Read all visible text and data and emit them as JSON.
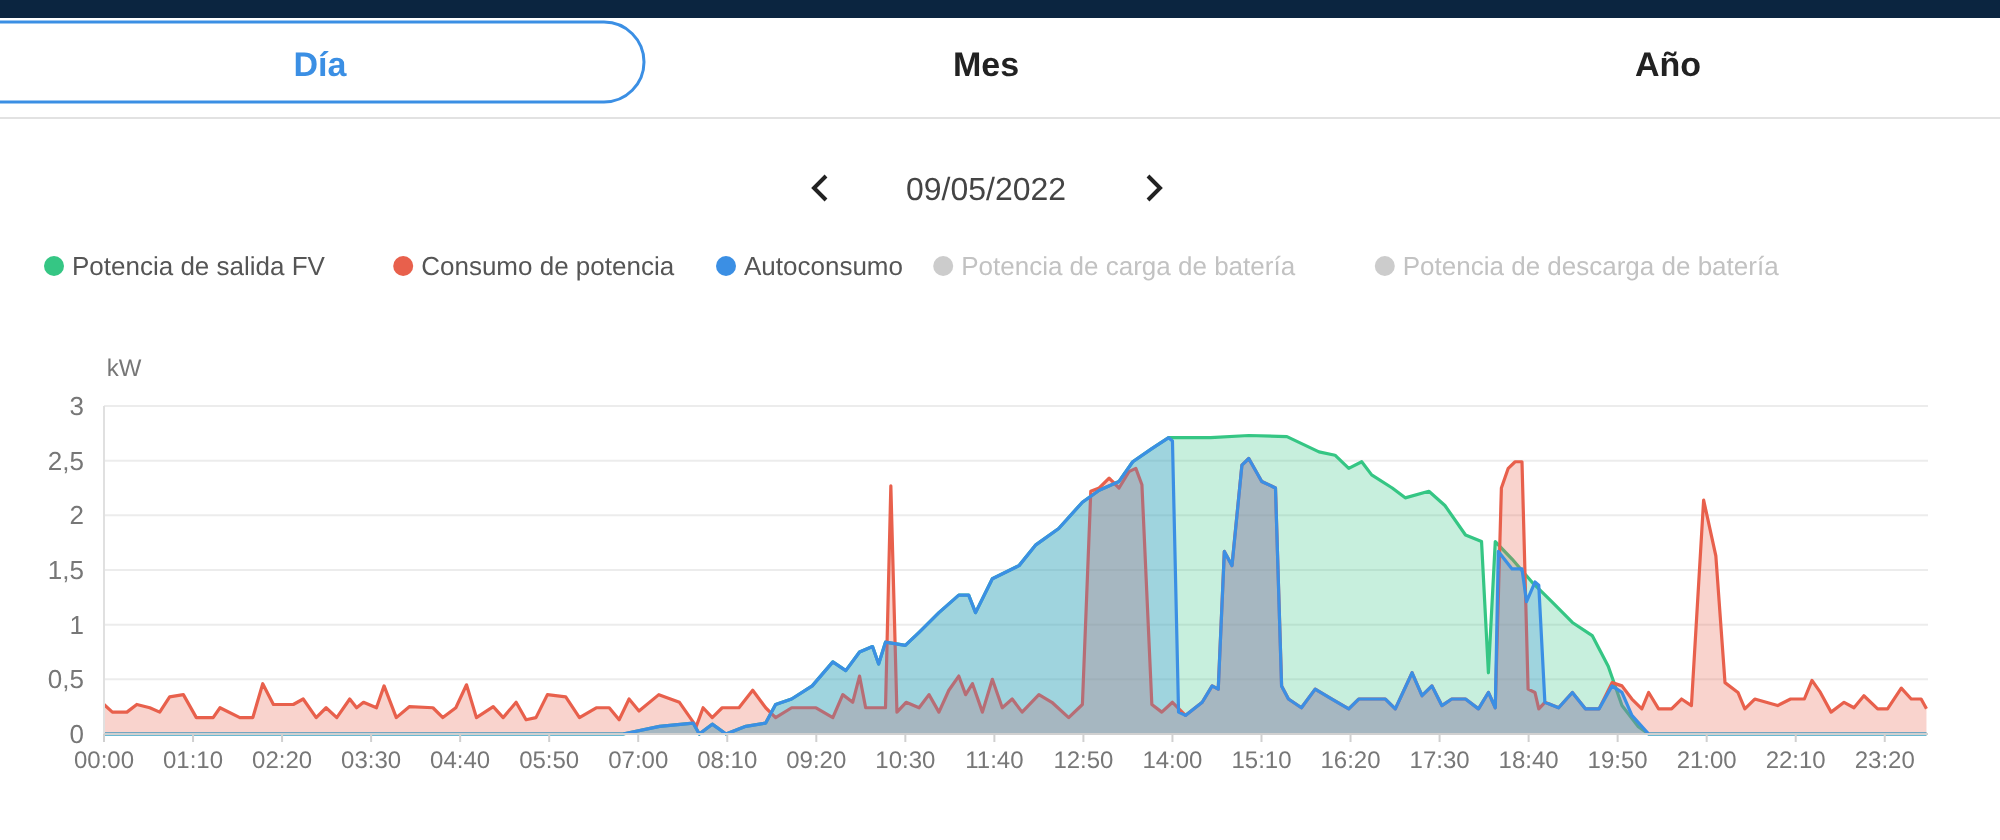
{
  "chart_data": {
    "type": "area",
    "title": "09/05/2022",
    "ylabel": "kW",
    "annotations": [
      "Día",
      "Mes",
      "Año"
    ],
    "xlim": [
      0,
      23.9
    ],
    "ylim": [
      0,
      3
    ],
    "xticks": [
      {
        "value": 0,
        "label": "00:00"
      },
      {
        "value": 1.1667,
        "label": "01:10"
      },
      {
        "value": 2.3333,
        "label": "02:20"
      },
      {
        "value": 3.5,
        "label": "03:30"
      },
      {
        "value": 4.6667,
        "label": "04:40"
      },
      {
        "value": 5.8333,
        "label": "05:50"
      },
      {
        "value": 7,
        "label": "07:00"
      },
      {
        "value": 8.1667,
        "label": "08:10"
      },
      {
        "value": 9.3333,
        "label": "09:20"
      },
      {
        "value": 10.5,
        "label": "10:30"
      },
      {
        "value": 11.6667,
        "label": "11:40"
      },
      {
        "value": 12.8333,
        "label": "12:50"
      },
      {
        "value": 14,
        "label": "14:00"
      },
      {
        "value": 15.1667,
        "label": "15:10"
      },
      {
        "value": 16.3333,
        "label": "16:20"
      },
      {
        "value": 17.5,
        "label": "17:30"
      },
      {
        "value": 18.6667,
        "label": "18:40"
      },
      {
        "value": 19.8333,
        "label": "19:50"
      },
      {
        "value": 21,
        "label": "21:00"
      },
      {
        "value": 22.1667,
        "label": "22:10"
      },
      {
        "value": 23.3333,
        "label": "23:20"
      }
    ],
    "yticks": [
      0,
      {
        "value": 0.5,
        "label": "0,5"
      },
      1,
      {
        "value": 1.5,
        "label": "1,5"
      },
      2,
      {
        "value": 2.5,
        "label": "2,5"
      },
      3
    ],
    "grid": "y",
    "legend": "top left",
    "marker": "none",
    "line_style": "solid",
    "series": [
      {
        "name": "Potencia de salida FV",
        "color": "#35c684",
        "x": [
          0,
          6.8,
          7.28,
          7.72,
          7.8,
          7.97,
          8.15,
          8.41,
          8.67,
          8.8,
          9.01,
          9.28,
          9.55,
          9.72,
          9.9,
          10.07,
          10.15,
          10.24,
          10.5,
          10.68,
          10.94,
          11.2,
          11.33,
          11.42,
          11.64,
          11.99,
          12.21,
          12.51,
          12.82,
          13.04,
          13.3,
          13.48,
          13.73,
          13.95,
          14.08,
          14.5,
          15,
          15.5,
          15.92,
          16.13,
          16.31,
          16.48,
          16.61,
          16.88,
          17.05,
          17.36,
          17.57,
          17.84,
          18.05,
          18.14,
          18.23,
          18.45,
          18.71,
          18.97,
          19.24,
          19.5,
          19.71,
          19.89,
          20.1,
          20.24,
          23.88
        ],
        "values": [
          0,
          0,
          0.07,
          0.1,
          0,
          0.09,
          0,
          0.07,
          0.1,
          0.27,
          0.32,
          0.44,
          0.66,
          0.58,
          0.75,
          0.8,
          0.64,
          0.84,
          0.81,
          0.93,
          1.11,
          1.27,
          1.27,
          1.11,
          1.42,
          1.54,
          1.73,
          1.88,
          2.12,
          2.23,
          2.31,
          2.49,
          2.61,
          2.71,
          2.71,
          2.71,
          2.73,
          2.72,
          2.58,
          2.55,
          2.43,
          2.49,
          2.37,
          2.25,
          2.16,
          2.22,
          2.09,
          1.82,
          1.76,
          0.56,
          1.76,
          1.6,
          1.39,
          1.21,
          1.02,
          0.9,
          0.62,
          0.26,
          0.07,
          0,
          0
        ]
      },
      {
        "name": "Consumo de potencia",
        "color": "#e8604c",
        "x": [
          0,
          0.11,
          0.3,
          0.43,
          0.6,
          0.73,
          0.86,
          1.04,
          1.21,
          1.43,
          1.52,
          1.78,
          1.95,
          2.08,
          2.22,
          2.48,
          2.61,
          2.78,
          2.91,
          3.05,
          3.22,
          3.31,
          3.4,
          3.57,
          3.67,
          3.83,
          4,
          4.31,
          4.44,
          4.61,
          4.75,
          4.88,
          5.1,
          5.23,
          5.4,
          5.53,
          5.66,
          5.81,
          6.05,
          6.23,
          6.45,
          6.62,
          6.75,
          6.88,
          7.01,
          7.27,
          7.54,
          7.76,
          7.85,
          7.97,
          8.1,
          8.32,
          8.5,
          8.67,
          8.8,
          9.01,
          9.33,
          9.55,
          9.68,
          9.81,
          9.9,
          9.98,
          10.24,
          10.31,
          10.39,
          10.51,
          10.68,
          10.81,
          10.94,
          11.07,
          11.2,
          11.29,
          11.38,
          11.51,
          11.64,
          11.77,
          11.9,
          12.03,
          12.25,
          12.42,
          12.64,
          12.82,
          12.93,
          13.04,
          13.17,
          13.3,
          13.43,
          13.52,
          13.6,
          13.73,
          13.86,
          14,
          14.17,
          14.39,
          14.52,
          14.6,
          14.68,
          14.78,
          14.91,
          15,
          15.17,
          15.35,
          15.43,
          15.52,
          15.69,
          15.87,
          16.09,
          16.31,
          16.44,
          16.79,
          16.92,
          17.14,
          17.27,
          17.4,
          17.53,
          17.66,
          17.84,
          18.01,
          18.14,
          18.23,
          18.31,
          18.4,
          18.49,
          18.58,
          18.66,
          18.75,
          18.8,
          18.88,
          19.06,
          19.24,
          19.41,
          19.59,
          19.76,
          19.89,
          20.02,
          20.15,
          20.24,
          20.37,
          20.54,
          20.67,
          20.8,
          20.96,
          21.12,
          21.24,
          21.41,
          21.5,
          21.63,
          21.93,
          22.1,
          22.28,
          22.38,
          22.49,
          22.63,
          22.8,
          22.93,
          23.06,
          23.24,
          23.37,
          23.55,
          23.68,
          23.81,
          23.88
        ],
        "values": [
          0.27,
          0.2,
          0.2,
          0.27,
          0.24,
          0.2,
          0.34,
          0.36,
          0.15,
          0.15,
          0.24,
          0.15,
          0.15,
          0.46,
          0.27,
          0.27,
          0.32,
          0.15,
          0.24,
          0.15,
          0.32,
          0.24,
          0.29,
          0.24,
          0.44,
          0.15,
          0.25,
          0.24,
          0.15,
          0.24,
          0.45,
          0.15,
          0.25,
          0.15,
          0.29,
          0.13,
          0.15,
          0.36,
          0.34,
          0.15,
          0.24,
          0.24,
          0.13,
          0.32,
          0.21,
          0.36,
          0.29,
          0.07,
          0.24,
          0.15,
          0.24,
          0.24,
          0.4,
          0.24,
          0.15,
          0.24,
          0.24,
          0.15,
          0.36,
          0.29,
          0.53,
          0.24,
          0.24,
          2.27,
          0.2,
          0.29,
          0.24,
          0.36,
          0.2,
          0.4,
          0.53,
          0.36,
          0.46,
          0.2,
          0.5,
          0.24,
          0.32,
          0.2,
          0.36,
          0.29,
          0.15,
          0.27,
          2.22,
          2.25,
          2.34,
          2.25,
          2.4,
          2.43,
          2.28,
          0.27,
          0.2,
          0.29,
          0.17,
          0.29,
          0.44,
          0.41,
          1.67,
          1.54,
          2.46,
          2.52,
          2.31,
          2.25,
          0.44,
          0.32,
          0.24,
          0.41,
          0.32,
          0.23,
          0.32,
          0.32,
          0.23,
          0.56,
          0.35,
          0.44,
          0.26,
          0.32,
          0.32,
          0.23,
          0.38,
          0.24,
          2.25,
          2.43,
          2.49,
          2.49,
          0.41,
          0.38,
          0.23,
          0.29,
          0.24,
          0.38,
          0.23,
          0.23,
          0.47,
          0.44,
          0.32,
          0.23,
          0.38,
          0.23,
          0.23,
          0.32,
          0.26,
          2.14,
          1.63,
          0.47,
          0.38,
          0.23,
          0.32,
          0.26,
          0.32,
          0.32,
          0.49,
          0.38,
          0.2,
          0.29,
          0.24,
          0.35,
          0.23,
          0.23,
          0.42,
          0.32,
          0.32,
          0.23
        ]
      },
      {
        "name": "Autoconsumo",
        "color": "#3b8fe4",
        "x": [
          0,
          6.8,
          7.28,
          7.72,
          7.8,
          7.97,
          8.15,
          8.41,
          8.67,
          8.8,
          9.01,
          9.28,
          9.55,
          9.72,
          9.9,
          10.07,
          10.15,
          10.24,
          10.5,
          10.68,
          10.94,
          11.2,
          11.33,
          11.42,
          11.64,
          11.99,
          12.21,
          12.51,
          12.82,
          13.04,
          13.3,
          13.48,
          13.73,
          13.95,
          14,
          14.08,
          14.17,
          14.39,
          14.52,
          14.6,
          14.68,
          14.78,
          14.91,
          15,
          15.17,
          15.35,
          15.43,
          15.52,
          15.69,
          15.87,
          16.09,
          16.31,
          16.44,
          16.79,
          16.92,
          17.14,
          17.27,
          17.4,
          17.53,
          17.66,
          17.84,
          18.01,
          18.14,
          18.23,
          18.27,
          18.45,
          18.58,
          18.64,
          18.75,
          18.8,
          18.88,
          19.06,
          19.24,
          19.41,
          19.59,
          19.76,
          19.89,
          20.02,
          20.24,
          23.88
        ],
        "values": [
          0,
          0,
          0.07,
          0.1,
          0,
          0.09,
          0,
          0.07,
          0.1,
          0.27,
          0.32,
          0.44,
          0.66,
          0.58,
          0.75,
          0.8,
          0.64,
          0.84,
          0.81,
          0.93,
          1.11,
          1.27,
          1.27,
          1.11,
          1.42,
          1.54,
          1.73,
          1.88,
          2.12,
          2.23,
          2.31,
          2.49,
          2.61,
          2.71,
          2.68,
          0.2,
          0.17,
          0.29,
          0.44,
          0.41,
          1.67,
          1.54,
          2.46,
          2.52,
          2.31,
          2.25,
          0.44,
          0.32,
          0.24,
          0.41,
          0.32,
          0.23,
          0.32,
          0.32,
          0.23,
          0.56,
          0.35,
          0.44,
          0.26,
          0.32,
          0.32,
          0.23,
          0.38,
          0.24,
          1.67,
          1.51,
          1.51,
          1.21,
          1.39,
          1.36,
          0.29,
          0.24,
          0.38,
          0.23,
          0.23,
          0.44,
          0.38,
          0.17,
          0,
          0
        ]
      },
      {
        "name": "Potencia de carga de batería",
        "color": "#cccccc"
      },
      {
        "name": "Potencia de descarga de batería",
        "color": "#cccccc"
      }
    ]
  }
}
